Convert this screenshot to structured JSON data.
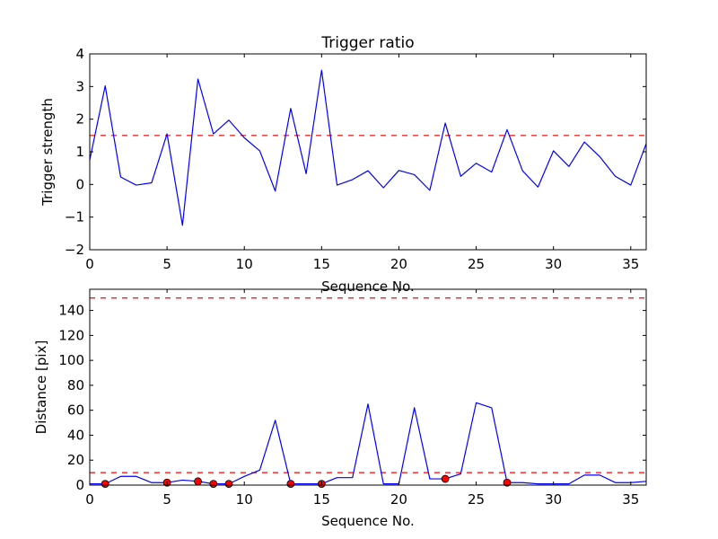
{
  "colors": {
    "line": "#0000ff",
    "threshold": "#ff0000",
    "marker_fill": "#ff0000",
    "marker_edge": "#000000",
    "background": "#ffffff",
    "axes": "#000000"
  },
  "chart_data": [
    {
      "type": "line",
      "title": "Trigger ratio",
      "xlabel": "Sequence No.",
      "ylabel": "Trigger strength",
      "xlim": [
        0,
        36
      ],
      "ylim": [
        -2,
        4
      ],
      "xticks": [
        0,
        5,
        10,
        15,
        20,
        25,
        30,
        35
      ],
      "yticks": [
        -2,
        -1,
        0,
        1,
        2,
        3,
        4
      ],
      "xtick_labels": [
        "0",
        "5",
        "10",
        "15",
        "20",
        "25",
        "30",
        "35"
      ],
      "ytick_labels": [
        "−2",
        "−1",
        "0",
        "1",
        "2",
        "3",
        "4"
      ],
      "grid": false,
      "series": [
        {
          "x": [
            0,
            1,
            2,
            3,
            4,
            5,
            6,
            7,
            8,
            9,
            10,
            11,
            12,
            13,
            14,
            15,
            16,
            17,
            18,
            19,
            20,
            21,
            22,
            23,
            24,
            25,
            26,
            27,
            28,
            29,
            30,
            31,
            32,
            33,
            34,
            35,
            36
          ],
          "values": [
            0.75,
            3.02,
            0.23,
            -0.02,
            0.05,
            1.55,
            -1.25,
            3.23,
            1.55,
            1.97,
            1.43,
            1.03,
            -0.2,
            2.33,
            0.33,
            3.5,
            -0.02,
            0.15,
            0.42,
            -0.1,
            0.43,
            0.3,
            -0.18,
            1.88,
            0.25,
            0.65,
            0.38,
            1.68,
            0.42,
            -0.08,
            1.03,
            0.55,
            1.3,
            0.85,
            0.25,
            -0.02,
            1.25
          ]
        }
      ],
      "threshold": 1.5
    },
    {
      "type": "line",
      "title": "",
      "xlabel": "Sequence No.",
      "ylabel": "Distance [pix]",
      "xlim": [
        0,
        36
      ],
      "ylim": [
        0,
        157
      ],
      "xticks": [
        0,
        5,
        10,
        15,
        20,
        25,
        30,
        35
      ],
      "yticks": [
        0,
        20,
        40,
        60,
        80,
        100,
        120,
        140
      ],
      "xtick_labels": [
        "0",
        "5",
        "10",
        "15",
        "20",
        "25",
        "30",
        "35"
      ],
      "ytick_labels": [
        "0",
        "20",
        "40",
        "60",
        "80",
        "100",
        "120",
        "140"
      ],
      "grid": false,
      "series": [
        {
          "x": [
            0,
            1,
            2,
            3,
            4,
            5,
            6,
            7,
            8,
            9,
            10,
            11,
            12,
            13,
            14,
            15,
            16,
            17,
            18,
            19,
            20,
            21,
            22,
            23,
            24,
            25,
            26,
            27,
            28,
            29,
            30,
            31,
            32,
            33,
            34,
            35,
            36
          ],
          "values": [
            1,
            1,
            7,
            7,
            2,
            2,
            4,
            3,
            1,
            1,
            7,
            12,
            52,
            1,
            1,
            1,
            6,
            6,
            65,
            1,
            1,
            62,
            5,
            5,
            9,
            66,
            62,
            2,
            2,
            1,
            1,
            1,
            8,
            8,
            2,
            2,
            3
          ]
        }
      ],
      "markers": {
        "x": [
          1,
          5,
          7,
          8,
          9,
          13,
          15,
          23,
          27
        ],
        "y": [
          1,
          2,
          3,
          1,
          1,
          1,
          1,
          5,
          2
        ]
      },
      "thresholds": [
        10,
        150
      ]
    }
  ]
}
